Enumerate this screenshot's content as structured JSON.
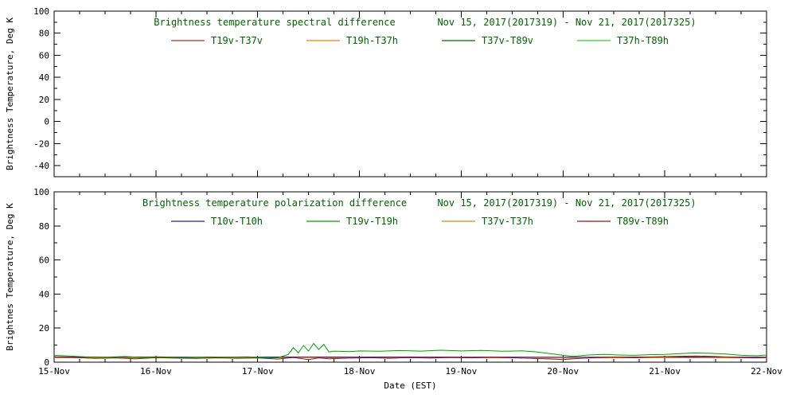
{
  "page": {
    "background": "#ffffff",
    "axis_color": "#000000",
    "tick_text_color": "#000000",
    "title_color": "#006400"
  },
  "xaxis": {
    "label": "Date (EST)",
    "xlim": [
      0,
      7
    ],
    "tick_positions": [
      0,
      1,
      2,
      3,
      4,
      5,
      6,
      7
    ],
    "tick_labels": [
      "15-Nov",
      "16-Nov",
      "17-Nov",
      "18-Nov",
      "19-Nov",
      "20-Nov",
      "21-Nov",
      "22-Nov"
    ],
    "minor_tick_step": 0.25
  },
  "chart_data": [
    {
      "type": "line",
      "title": "Brightness temperature spectral difference",
      "date_range": "Nov 15, 2017(2017319) - Nov 21, 2017(2017325)",
      "ylabel": "Brightness Temperature, Deg K",
      "ylim": [
        -50,
        100
      ],
      "yticks": [
        -40,
        -20,
        0,
        20,
        40,
        60,
        80,
        100
      ],
      "minor_y_step": 10,
      "show_x_tick_labels": false,
      "show_x_axis_label": false,
      "legend_position": "top-inside",
      "grid": false,
      "legend": [
        {
          "label": "T19v-T37v",
          "color": "#a03030"
        },
        {
          "label": "T19h-T37h",
          "color": "#e8820c"
        },
        {
          "label": "T37v-T89v",
          "color": "#006400"
        },
        {
          "label": "T37h-T89h",
          "color": "#33cc33"
        }
      ],
      "series": [
        {
          "name": "T19v-T37v",
          "color": "#a03030",
          "points": []
        },
        {
          "name": "T19h-T37h",
          "color": "#e8820c",
          "points": []
        },
        {
          "name": "T37v-T89v",
          "color": "#006400",
          "points": []
        },
        {
          "name": "T37h-T89h",
          "color": "#33cc33",
          "points": []
        }
      ]
    },
    {
      "type": "line",
      "title": "Brightness temperature polarization difference",
      "date_range": "Nov 15, 2017(2017319) - Nov 21, 2017(2017325)",
      "ylabel": "Brightnes Temperature, Deg K",
      "ylim": [
        0,
        100
      ],
      "yticks": [
        0,
        20,
        40,
        60,
        80,
        100
      ],
      "minor_y_step": 10,
      "show_x_tick_labels": true,
      "show_x_axis_label": true,
      "legend_position": "top-inside",
      "grid": false,
      "legend": [
        {
          "label": "T10v-T10h",
          "color": "#2020a0"
        },
        {
          "label": "T19v-T19h",
          "color": "#00a000"
        },
        {
          "label": "T37v-T37h",
          "color": "#e8820c"
        },
        {
          "label": "T89v-T89h",
          "color": "#8b1a1a"
        }
      ],
      "series": [
        {
          "name": "T10v-T10h",
          "color": "#2020a0",
          "points": [
            [
              0,
              3.2
            ],
            [
              0.5,
              3.0
            ],
            [
              1.0,
              3.1
            ],
            [
              1.5,
              2.9
            ],
            [
              2.0,
              3.0
            ],
            [
              2.5,
              3.1
            ],
            [
              3.0,
              3.0
            ],
            [
              3.5,
              3.1
            ],
            [
              4.0,
              3.0
            ],
            [
              4.5,
              3.0
            ],
            [
              5.0,
              2.9
            ],
            [
              5.5,
              3.0
            ],
            [
              6.0,
              3.1
            ],
            [
              6.5,
              3.0
            ],
            [
              7.0,
              3.0
            ]
          ]
        },
        {
          "name": "T37v-T37h",
          "color": "#e8820c",
          "points": [
            [
              0,
              2.6
            ],
            [
              0.5,
              2.5
            ],
            [
              1.0,
              2.6
            ],
            [
              1.5,
              2.4
            ],
            [
              2.0,
              2.5
            ],
            [
              2.5,
              2.6
            ],
            [
              3.0,
              2.5
            ],
            [
              3.5,
              2.6
            ],
            [
              4.0,
              2.6
            ],
            [
              4.5,
              2.5
            ],
            [
              5.0,
              2.4
            ],
            [
              5.5,
              2.5
            ],
            [
              6.0,
              2.6
            ],
            [
              6.5,
              2.5
            ],
            [
              7.0,
              2.5
            ]
          ]
        },
        {
          "name": "T89v-T89h",
          "color": "#8b1a1a",
          "points": [
            [
              0,
              3.0
            ],
            [
              0.2,
              2.8
            ],
            [
              0.4,
              2.2
            ],
            [
              0.6,
              2.5
            ],
            [
              0.8,
              2.0
            ],
            [
              1.0,
              2.6
            ],
            [
              1.2,
              2.4
            ],
            [
              1.4,
              2.2
            ],
            [
              1.6,
              2.6
            ],
            [
              1.8,
              2.3
            ],
            [
              2.0,
              2.5
            ],
            [
              2.2,
              1.8
            ],
            [
              2.35,
              2.8
            ],
            [
              2.5,
              1.5
            ],
            [
              2.6,
              2.5
            ],
            [
              2.7,
              2.0
            ],
            [
              2.9,
              2.4
            ],
            [
              3.1,
              2.6
            ],
            [
              3.3,
              2.3
            ],
            [
              3.5,
              2.7
            ],
            [
              3.7,
              2.4
            ],
            [
              3.9,
              2.8
            ],
            [
              4.1,
              2.5
            ],
            [
              4.3,
              2.9
            ],
            [
              4.5,
              2.6
            ],
            [
              4.7,
              2.2
            ],
            [
              4.9,
              1.8
            ],
            [
              5.0,
              1.5
            ],
            [
              5.1,
              2.0
            ],
            [
              5.3,
              2.6
            ],
            [
              5.5,
              3.0
            ],
            [
              5.7,
              2.7
            ],
            [
              5.9,
              3.1
            ],
            [
              6.1,
              3.4
            ],
            [
              6.3,
              3.6
            ],
            [
              6.5,
              3.3
            ],
            [
              6.7,
              2.8
            ],
            [
              6.9,
              2.5
            ],
            [
              7.0,
              2.8
            ]
          ]
        },
        {
          "name": "T19v-T19h",
          "color": "#00a000",
          "points": [
            [
              0,
              4.0
            ],
            [
              0.15,
              3.6
            ],
            [
              0.3,
              3.2
            ],
            [
              0.5,
              3.0
            ],
            [
              0.7,
              3.3
            ],
            [
              0.85,
              2.8
            ],
            [
              1.0,
              3.2
            ],
            [
              1.15,
              3.0
            ],
            [
              1.3,
              2.7
            ],
            [
              1.5,
              3.1
            ],
            [
              1.7,
              3.0
            ],
            [
              1.9,
              3.2
            ],
            [
              2.0,
              2.8
            ],
            [
              2.1,
              2.5
            ],
            [
              2.2,
              2.6
            ],
            [
              2.3,
              4.5
            ],
            [
              2.35,
              8.5
            ],
            [
              2.4,
              5.5
            ],
            [
              2.45,
              9.8
            ],
            [
              2.5,
              6.5
            ],
            [
              2.55,
              11.0
            ],
            [
              2.6,
              7.5
            ],
            [
              2.65,
              10.5
            ],
            [
              2.7,
              6.0
            ],
            [
              2.75,
              6.5
            ],
            [
              2.9,
              6.2
            ],
            [
              3.0,
              6.6
            ],
            [
              3.2,
              6.4
            ],
            [
              3.4,
              6.8
            ],
            [
              3.6,
              6.5
            ],
            [
              3.8,
              7.0
            ],
            [
              4.0,
              6.6
            ],
            [
              4.2,
              6.9
            ],
            [
              4.4,
              6.4
            ],
            [
              4.6,
              6.7
            ],
            [
              4.75,
              6.0
            ],
            [
              4.85,
              5.2
            ],
            [
              5.0,
              4.0
            ],
            [
              5.1,
              3.4
            ],
            [
              5.25,
              4.2
            ],
            [
              5.4,
              4.6
            ],
            [
              5.55,
              4.2
            ],
            [
              5.7,
              4.0
            ],
            [
              5.85,
              4.4
            ],
            [
              6.0,
              4.6
            ],
            [
              6.15,
              5.0
            ],
            [
              6.3,
              5.4
            ],
            [
              6.45,
              5.2
            ],
            [
              6.6,
              4.8
            ],
            [
              6.75,
              4.0
            ],
            [
              6.9,
              3.8
            ],
            [
              7.0,
              4.2
            ]
          ]
        }
      ]
    }
  ]
}
